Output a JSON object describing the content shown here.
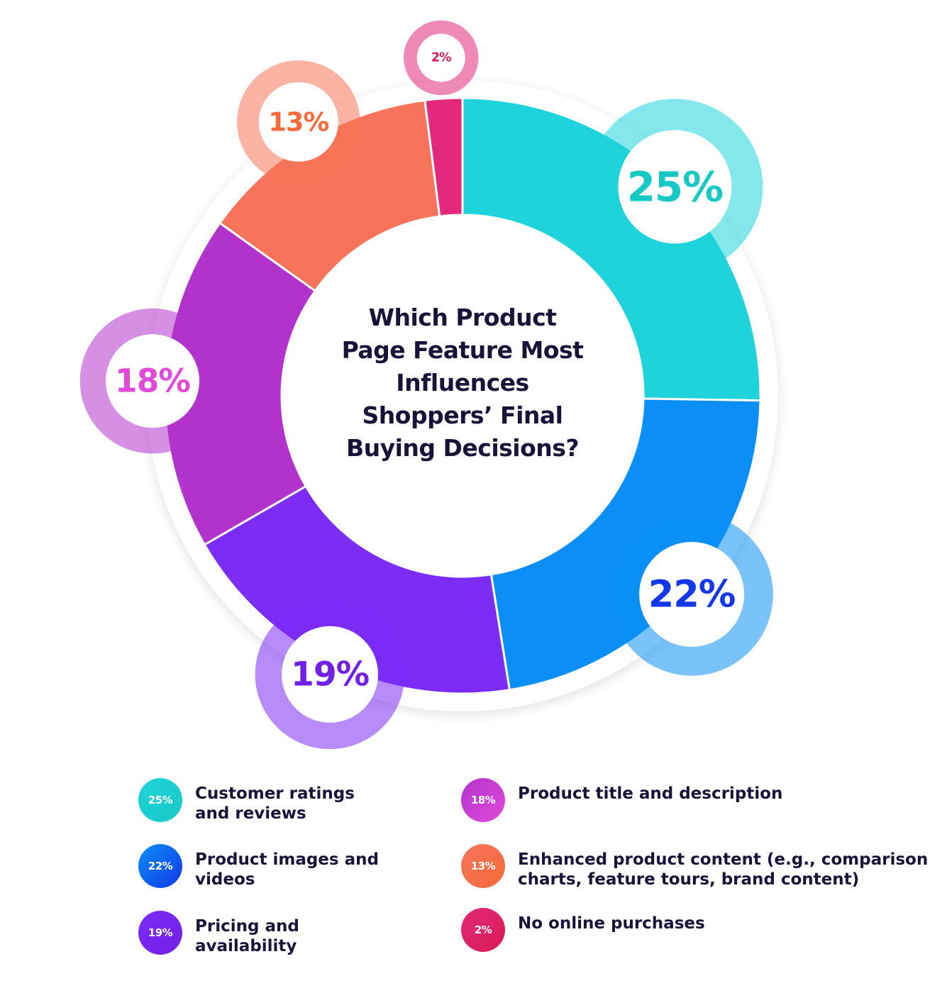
{
  "chart_data": {
    "type": "donut",
    "title": "Which Product Page Feature Most Influences Shoppers’ Final Buying Decisions?",
    "categories": [
      "Customer ratings and reviews",
      "Product images and videos",
      "Pricing and availability",
      "Product title and description",
      "Enhanced product content (e.g., comparison charts, feature tours, brand content)",
      "No online purchases"
    ],
    "values": [
      25,
      22,
      19,
      18,
      13,
      2
    ],
    "value_labels": [
      "25%",
      "22%",
      "19%",
      "18%",
      "13%",
      "2%"
    ],
    "colors": [
      "#1fd3da",
      "#0b8ff6",
      "#7b2cf5",
      "#b233cc",
      "#f7745a",
      "#e2297b"
    ],
    "label_colors": [
      "#17c9c4",
      "#1238e8",
      "#7320e6",
      "#e14ad8",
      "#f46a3a",
      "#d81b52"
    ]
  }
}
